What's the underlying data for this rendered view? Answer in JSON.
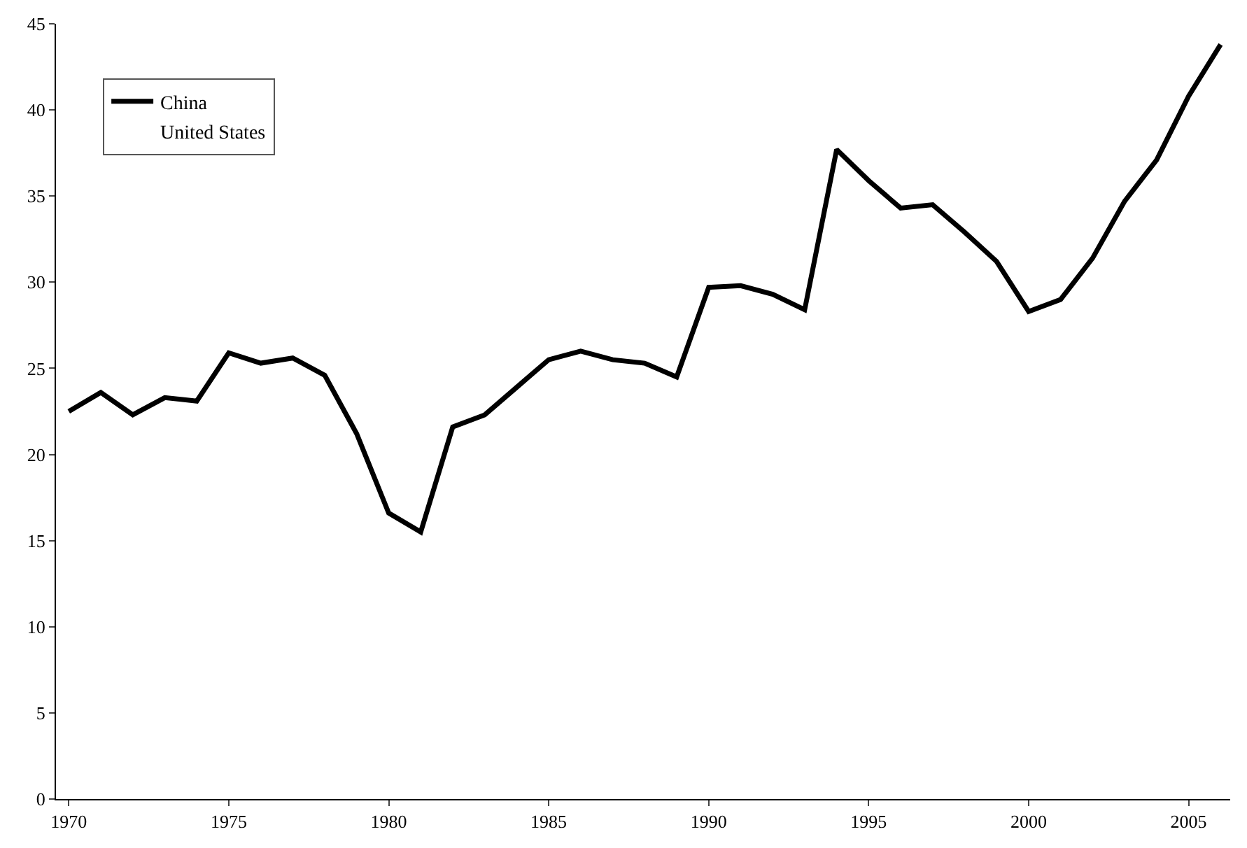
{
  "chart_data": {
    "type": "line",
    "x": [
      1970,
      1971,
      1972,
      1973,
      1974,
      1975,
      1976,
      1977,
      1978,
      1979,
      1980,
      1981,
      1982,
      1983,
      1984,
      1985,
      1986,
      1987,
      1988,
      1989,
      1990,
      1991,
      1992,
      1993,
      1994,
      1995,
      1996,
      1997,
      1998,
      1999,
      2000,
      2001,
      2002,
      2003,
      2004,
      2005,
      2006
    ],
    "series": [
      {
        "name": "China",
        "color": "#000000",
        "values": [
          22.5,
          23.6,
          22.3,
          23.3,
          23.1,
          25.9,
          25.3,
          25.6,
          24.6,
          21.2,
          16.6,
          15.5,
          21.6,
          22.3,
          23.9,
          25.5,
          26.0,
          25.5,
          25.3,
          24.5,
          29.7,
          29.8,
          29.3,
          28.4,
          37.7,
          35.9,
          34.3,
          34.5,
          32.9,
          31.2,
          28.3,
          29.0,
          31.4,
          34.7,
          37.1,
          40.8,
          43.8
        ]
      },
      {
        "name": "United States",
        "values": [
          null,
          null,
          null,
          null,
          null,
          null,
          null,
          null,
          null,
          null,
          null,
          null,
          null,
          null,
          null,
          null,
          null,
          null,
          null,
          null,
          null,
          null,
          null,
          null,
          null,
          null,
          null,
          null,
          null,
          null,
          null,
          null,
          null,
          null,
          null,
          null,
          null
        ]
      }
    ],
    "xlim": [
      1969.6,
      2006.3
    ],
    "xticks": [
      1970,
      1975,
      1980,
      1985,
      1990,
      1995,
      2000,
      2005
    ],
    "ylim": [
      0,
      45
    ],
    "yticks": [
      0,
      5,
      10,
      15,
      20,
      25,
      30,
      35,
      40,
      45
    ],
    "legend": "top left",
    "marker": "none",
    "line_style": "solid"
  }
}
